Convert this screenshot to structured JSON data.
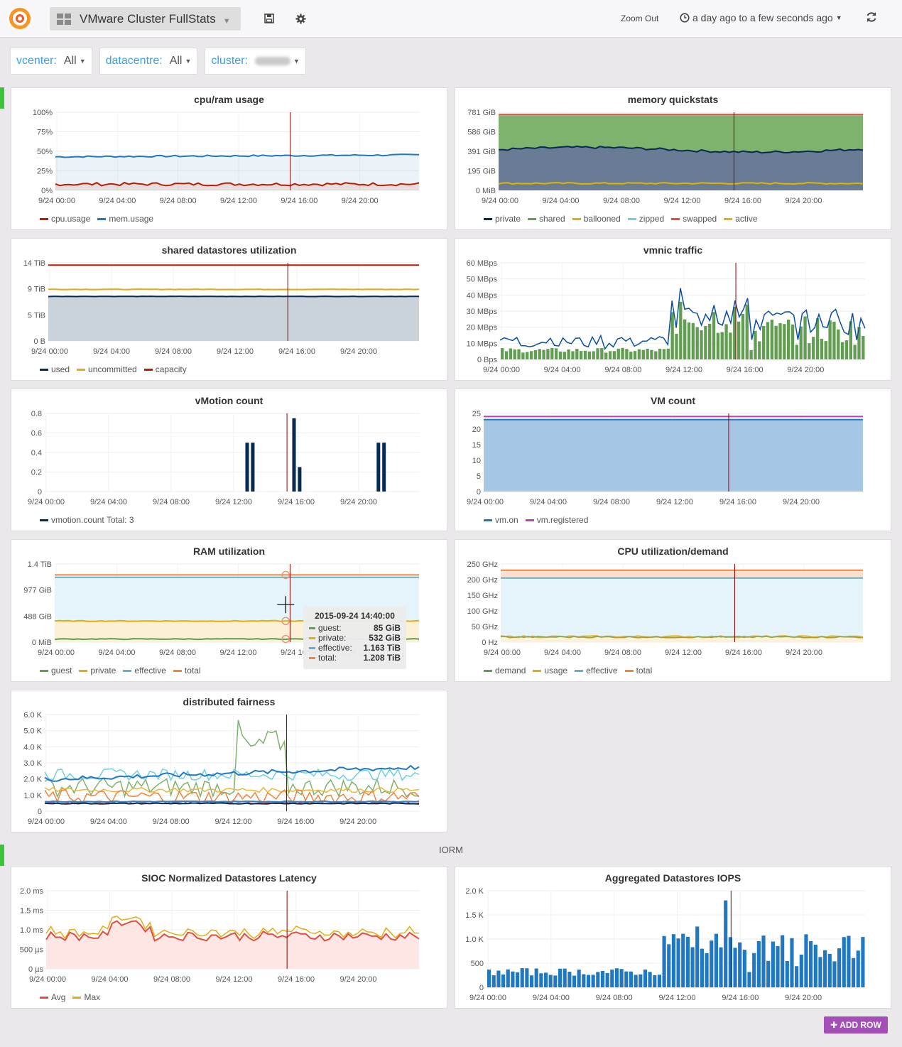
{
  "navbar": {
    "dashboard_title": "VMware Cluster FullStats",
    "zoom_out": "Zoom Out",
    "time_range": "a day ago to a few seconds ago",
    "icons": [
      "grafana-logo-icon",
      "dashboard-grid-icon",
      "save-icon",
      "gear-icon",
      "clock-icon",
      "refresh-icon"
    ]
  },
  "templating": [
    {
      "label": "vcenter:",
      "value": "All"
    },
    {
      "label": "datacentre:",
      "value": "All"
    },
    {
      "label": "cluster:",
      "value": ""
    }
  ],
  "colors": {
    "green": "#629e51",
    "yellow": "#e5ac0e",
    "blue": "#1f78c1",
    "lightblue": "#64b0c8",
    "red": "#bf1b00",
    "orange": "#ef843c",
    "darkblue": "#052b51",
    "purple": "#ba43a9"
  },
  "time_ticks": [
    "9/24 00:00",
    "9/24 04:00",
    "9/24 08:00",
    "9/24 12:00",
    "9/24 16:00",
    "9/24 20:00"
  ],
  "row_title": "IORM",
  "add_row": "ADD ROW",
  "panels": {
    "cpu_ram": {
      "title": "cpu/ram usage",
      "yticks": [
        "0%",
        "25%",
        "50%",
        "75%",
        "100%"
      ],
      "legend": [
        {
          "name": "cpu.usage",
          "color": "#bf1b00"
        },
        {
          "name": "mem.usage",
          "color": "#1f78c1"
        }
      ]
    },
    "mem_quick": {
      "title": "memory quickstats",
      "yticks": [
        "0 MiB",
        "195 GiB",
        "391 GiB",
        "586 GiB",
        "781 GiB"
      ],
      "legend": [
        {
          "name": "private",
          "color": "#052b51"
        },
        {
          "name": "shared",
          "color": "#629e51"
        },
        {
          "name": "ballooned",
          "color": "#e5ac0e"
        },
        {
          "name": "zipped",
          "color": "#6ed0e0"
        },
        {
          "name": "swapped",
          "color": "#e24d42"
        },
        {
          "name": "active",
          "color": "#e0b400"
        }
      ]
    },
    "datastores": {
      "title": "shared datastores utilization",
      "yticks": [
        "0 B",
        "5 TiB",
        "9 TiB",
        "14 TiB"
      ],
      "legend": [
        {
          "name": "used",
          "color": "#052b51"
        },
        {
          "name": "uncommitted",
          "color": "#e5ac0e"
        },
        {
          "name": "capacity",
          "color": "#bf1b00"
        }
      ]
    },
    "vmnic": {
      "title": "vmnic traffic",
      "yticks": [
        "0 Bps",
        "10 MBps",
        "20 MBps",
        "30 MBps",
        "40 MBps",
        "50 MBps",
        "60 MBps"
      ]
    },
    "vmotion": {
      "title": "vMotion count",
      "yticks": [
        "0",
        "0.2",
        "0.4",
        "0.6",
        "0.8"
      ],
      "legend": [
        {
          "name": "vmotion.count  Total: 3",
          "color": "#052b51"
        }
      ]
    },
    "vmcount": {
      "title": "VM count",
      "yticks": [
        "0",
        "5",
        "10",
        "15",
        "20",
        "25"
      ],
      "legend": [
        {
          "name": "vm.on",
          "color": "#1f78c1"
        },
        {
          "name": "vm.registered",
          "color": "#ba43a9"
        }
      ]
    },
    "ramutil": {
      "title": "RAM utilization",
      "yticks": [
        "0 MiB",
        "488 GiB",
        "977 GiB",
        "1.4 TiB"
      ],
      "legend": [
        {
          "name": "guest",
          "color": "#629e51"
        },
        {
          "name": "private",
          "color": "#e5ac0e"
        },
        {
          "name": "effective",
          "color": "#64b0c8"
        },
        {
          "name": "total",
          "color": "#ef843c"
        }
      ],
      "tooltip": {
        "time": "2015-09-24 14:40:00",
        "rows": [
          {
            "k": "guest:",
            "v": "85 GiB",
            "color": "#629e51"
          },
          {
            "k": "private:",
            "v": "532 GiB",
            "color": "#e5ac0e"
          },
          {
            "k": "effective:",
            "v": "1.163 TiB",
            "color": "#64b0c8"
          },
          {
            "k": "total:",
            "v": "1.208 TiB",
            "color": "#ef843c"
          }
        ]
      }
    },
    "cpuutil": {
      "title": "CPU utilization/demand",
      "yticks": [
        "0 Hz",
        "50 GHz",
        "100 GHz",
        "150 GHz",
        "200 GHz",
        "250 GHz"
      ],
      "legend": [
        {
          "name": "demand",
          "color": "#629e51"
        },
        {
          "name": "usage",
          "color": "#e5ac0e"
        },
        {
          "name": "effective",
          "color": "#64b0c8"
        },
        {
          "name": "total",
          "color": "#ef843c"
        }
      ]
    },
    "fairness": {
      "title": "distributed fairness",
      "yticks": [
        "0",
        "1.0 K",
        "2.0 K",
        "3.0 K",
        "4.0 K",
        "5.0 K",
        "6.0 K"
      ]
    },
    "sioc": {
      "title": "SIOC Normalized Datastores Latency",
      "yticks": [
        "0 µs",
        "500 µs",
        "1.0 ms",
        "1.5 ms",
        "2.0 ms"
      ],
      "legend": [
        {
          "name": "Avg",
          "color": "#e24d42"
        },
        {
          "name": "Max",
          "color": "#e5ac0e"
        }
      ]
    },
    "iops": {
      "title": "Aggregated Datastores IOPS",
      "yticks": [
        "0",
        "500",
        "1.0 K",
        "1.5 K",
        "2.0 K"
      ]
    }
  }
}
